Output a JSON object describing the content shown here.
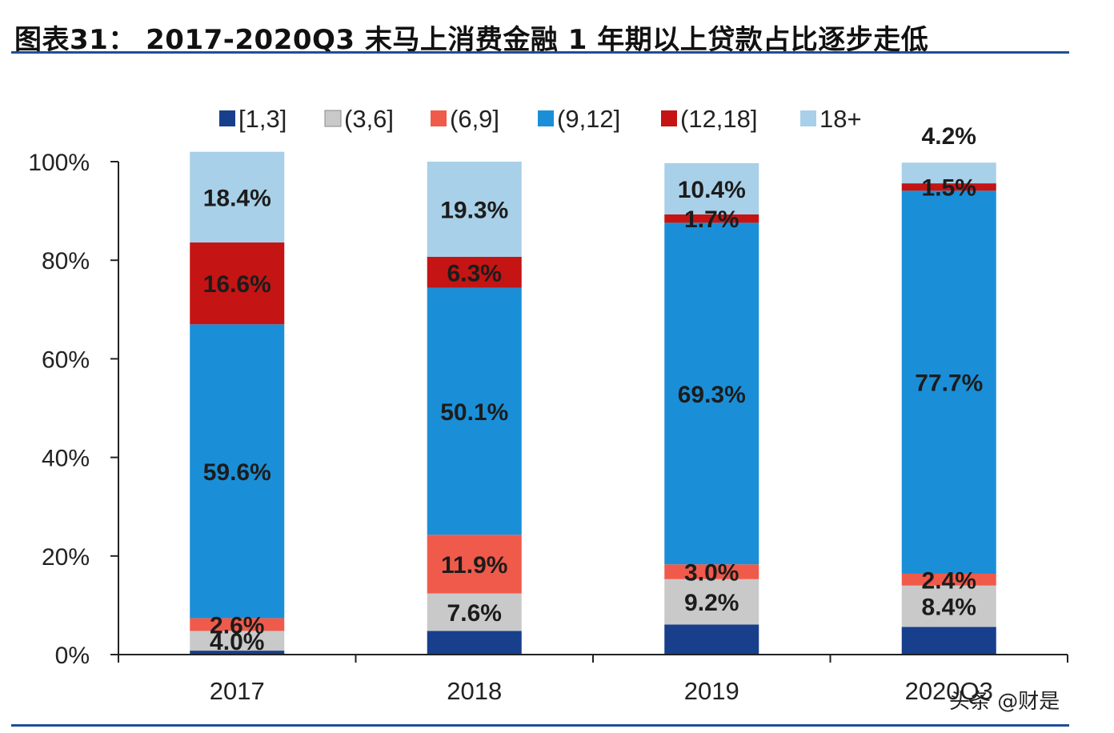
{
  "header": {
    "title": "图表31： 2017-2020Q3 末马上消费金融 1 年期以上贷款占比逐步走低"
  },
  "watermark": {
    "text": "头条 @财是"
  },
  "chart_data": {
    "type": "bar",
    "stacked": true,
    "title": "",
    "xlabel": "",
    "ylabel": "",
    "ylim": [
      0,
      100
    ],
    "yticks": [
      "0%",
      "20%",
      "40%",
      "60%",
      "80%",
      "100%"
    ],
    "categories": [
      "2017",
      "2018",
      "2019",
      "2020Q3"
    ],
    "legend_position": "top",
    "series": [
      {
        "name": "[1,3]",
        "color": "#173f8c",
        "values": [
          0.8,
          4.8,
          6.1,
          5.6
        ],
        "labels": [
          "",
          "",
          "",
          ""
        ]
      },
      {
        "name": "(3,6]",
        "color": "#c9c9c9",
        "values": [
          4.0,
          7.6,
          9.2,
          8.4
        ],
        "labels": [
          "4.0%",
          "7.6%",
          "9.2%",
          "8.4%"
        ]
      },
      {
        "name": "(6,9]",
        "color": "#f05a4a",
        "values": [
          2.6,
          11.9,
          3.0,
          2.4
        ],
        "labels": [
          "2.6%",
          "11.9%",
          "3.0%",
          "2.4%"
        ]
      },
      {
        "name": "(9,12]",
        "color": "#1a8fd8",
        "values": [
          59.6,
          50.1,
          69.3,
          77.7
        ],
        "labels": [
          "59.6%",
          "50.1%",
          "69.3%",
          "77.7%"
        ]
      },
      {
        "name": "(12,18]",
        "color": "#c41414",
        "values": [
          16.6,
          6.3,
          1.7,
          1.5
        ],
        "labels": [
          "16.6%",
          "6.3%",
          "1.7%",
          "1.5%"
        ]
      },
      {
        "name": "18+",
        "color": "#a8d0e8",
        "values": [
          18.4,
          19.3,
          10.4,
          4.2
        ],
        "labels": [
          "18.4%",
          "19.3%",
          "10.4%",
          "4.2%"
        ]
      }
    ]
  }
}
